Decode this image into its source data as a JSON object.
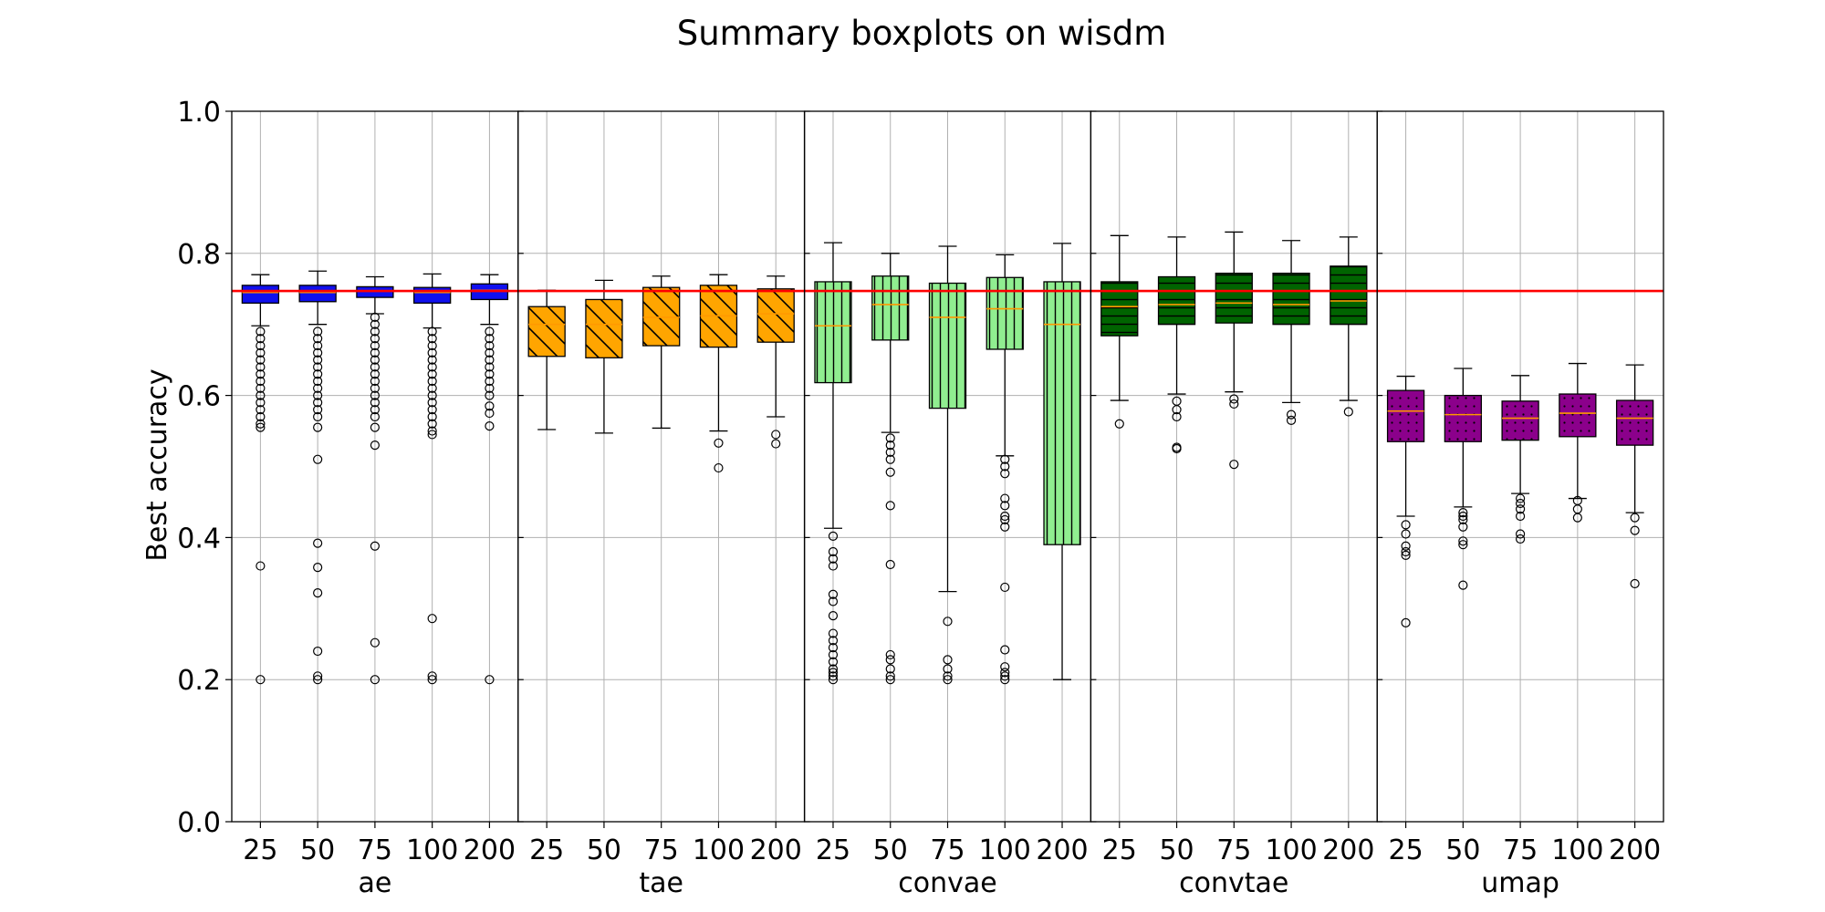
{
  "chart_data": {
    "type": "boxplot",
    "title": "Summary boxplots on wisdm",
    "ylabel": "Best accuracy",
    "ylim": [
      0.0,
      1.0
    ],
    "yticks": [
      0.0,
      0.2,
      0.4,
      0.6,
      0.8,
      1.0
    ],
    "ytick_labels": [
      "0.0",
      "0.2",
      "0.4",
      "0.6",
      "0.8",
      "1.0"
    ],
    "grid": true,
    "reference_line": {
      "value": 0.747,
      "color": "#ff0000"
    },
    "median_color": "#ff9900",
    "groups": [
      {
        "name": "ae",
        "color": "#1010ee",
        "hatch": "none",
        "boxes": [
          {
            "x": "25",
            "whisker_low": 0.698,
            "q1": 0.73,
            "median": 0.745,
            "q3": 0.755,
            "whisker_high": 0.77,
            "outliers": [
              0.555,
              0.56,
              0.57,
              0.58,
              0.59,
              0.6,
              0.61,
              0.62,
              0.63,
              0.64,
              0.65,
              0.66,
              0.67,
              0.68,
              0.69,
              0.36,
              0.2
            ]
          },
          {
            "x": "50",
            "whisker_low": 0.7,
            "q1": 0.732,
            "median": 0.745,
            "q3": 0.755,
            "whisker_high": 0.775,
            "outliers": [
              0.555,
              0.57,
              0.58,
              0.59,
              0.6,
              0.61,
              0.62,
              0.63,
              0.64,
              0.65,
              0.66,
              0.67,
              0.68,
              0.69,
              0.51,
              0.392,
              0.358,
              0.322,
              0.24,
              0.205,
              0.2
            ]
          },
          {
            "x": "75",
            "whisker_low": 0.715,
            "q1": 0.738,
            "median": 0.747,
            "q3": 0.753,
            "whisker_high": 0.767,
            "outliers": [
              0.53,
              0.555,
              0.57,
              0.58,
              0.59,
              0.6,
              0.61,
              0.62,
              0.63,
              0.64,
              0.65,
              0.66,
              0.67,
              0.68,
              0.69,
              0.7,
              0.71,
              0.388,
              0.252,
              0.2
            ]
          },
          {
            "x": "100",
            "whisker_low": 0.695,
            "q1": 0.73,
            "median": 0.745,
            "q3": 0.752,
            "whisker_high": 0.771,
            "outliers": [
              0.545,
              0.55,
              0.56,
              0.57,
              0.58,
              0.59,
              0.6,
              0.61,
              0.62,
              0.63,
              0.64,
              0.65,
              0.66,
              0.67,
              0.68,
              0.69,
              0.286,
              0.205,
              0.2
            ]
          },
          {
            "x": "200",
            "whisker_low": 0.7,
            "q1": 0.735,
            "median": 0.748,
            "q3": 0.757,
            "whisker_high": 0.77,
            "outliers": [
              0.557,
              0.575,
              0.585,
              0.6,
              0.61,
              0.62,
              0.63,
              0.64,
              0.65,
              0.66,
              0.67,
              0.68,
              0.69,
              0.2
            ]
          }
        ]
      },
      {
        "name": "tae",
        "color": "#ffa500",
        "hatch": "diag",
        "boxes": [
          {
            "x": "25",
            "whisker_low": 0.552,
            "q1": 0.655,
            "median": 0.7,
            "q3": 0.725,
            "whisker_high": 0.748,
            "outliers": []
          },
          {
            "x": "50",
            "whisker_low": 0.547,
            "q1": 0.653,
            "median": 0.7,
            "q3": 0.735,
            "whisker_high": 0.762,
            "outliers": []
          },
          {
            "x": "75",
            "whisker_low": 0.554,
            "q1": 0.67,
            "median": 0.71,
            "q3": 0.752,
            "whisker_high": 0.768,
            "outliers": []
          },
          {
            "x": "100",
            "whisker_low": 0.55,
            "q1": 0.668,
            "median": 0.712,
            "q3": 0.755,
            "whisker_high": 0.77,
            "outliers": [
              0.533,
              0.498
            ]
          },
          {
            "x": "200",
            "whisker_low": 0.57,
            "q1": 0.675,
            "median": 0.715,
            "q3": 0.75,
            "whisker_high": 0.768,
            "outliers": [
              0.545,
              0.532
            ]
          }
        ]
      },
      {
        "name": "convae",
        "color": "#90ee90",
        "hatch": "vert",
        "boxes": [
          {
            "x": "25",
            "whisker_low": 0.413,
            "q1": 0.618,
            "median": 0.698,
            "q3": 0.76,
            "whisker_high": 0.815,
            "outliers": [
              0.402,
              0.38,
              0.37,
              0.36,
              0.32,
              0.31,
              0.29,
              0.265,
              0.255,
              0.245,
              0.235,
              0.225,
              0.215,
              0.21,
              0.205,
              0.2
            ]
          },
          {
            "x": "50",
            "whisker_low": 0.548,
            "q1": 0.678,
            "median": 0.728,
            "q3": 0.768,
            "whisker_high": 0.8,
            "outliers": [
              0.54,
              0.53,
              0.52,
              0.51,
              0.492,
              0.445,
              0.362,
              0.235,
              0.228,
              0.215,
              0.205,
              0.2
            ]
          },
          {
            "x": "75",
            "whisker_low": 0.324,
            "q1": 0.582,
            "median": 0.71,
            "q3": 0.758,
            "whisker_high": 0.81,
            "outliers": [
              0.282,
              0.228,
              0.215,
              0.205,
              0.2
            ]
          },
          {
            "x": "100",
            "whisker_low": 0.515,
            "q1": 0.665,
            "median": 0.722,
            "q3": 0.766,
            "whisker_high": 0.798,
            "outliers": [
              0.51,
              0.5,
              0.49,
              0.455,
              0.445,
              0.43,
              0.425,
              0.415,
              0.33,
              0.242,
              0.218,
              0.21,
              0.205,
              0.2
            ]
          },
          {
            "x": "200",
            "whisker_low": 0.2,
            "q1": 0.39,
            "median": 0.7,
            "q3": 0.76,
            "whisker_high": 0.814,
            "outliers": []
          }
        ]
      },
      {
        "name": "convtae",
        "color": "#006400",
        "hatch": "horiz",
        "boxes": [
          {
            "x": "25",
            "whisker_low": 0.593,
            "q1": 0.684,
            "median": 0.725,
            "q3": 0.76,
            "whisker_high": 0.825,
            "outliers": [
              0.56
            ]
          },
          {
            "x": "50",
            "whisker_low": 0.602,
            "q1": 0.7,
            "median": 0.728,
            "q3": 0.767,
            "whisker_high": 0.823,
            "outliers": [
              0.592,
              0.58,
              0.57,
              0.527,
              0.525
            ]
          },
          {
            "x": "75",
            "whisker_low": 0.605,
            "q1": 0.702,
            "median": 0.73,
            "q3": 0.772,
            "whisker_high": 0.83,
            "outliers": [
              0.595,
              0.588,
              0.503
            ]
          },
          {
            "x": "100",
            "whisker_low": 0.59,
            "q1": 0.7,
            "median": 0.728,
            "q3": 0.772,
            "whisker_high": 0.818,
            "outliers": [
              0.573,
              0.565
            ]
          },
          {
            "x": "200",
            "whisker_low": 0.593,
            "q1": 0.7,
            "median": 0.733,
            "q3": 0.782,
            "whisker_high": 0.823,
            "outliers": [
              0.577
            ]
          }
        ]
      },
      {
        "name": "umap",
        "color": "#8b008b",
        "hatch": "dots",
        "boxes": [
          {
            "x": "25",
            "whisker_low": 0.43,
            "q1": 0.535,
            "median": 0.578,
            "q3": 0.607,
            "whisker_high": 0.627,
            "outliers": [
              0.418,
              0.405,
              0.388,
              0.38,
              0.375,
              0.28
            ]
          },
          {
            "x": "50",
            "whisker_low": 0.443,
            "q1": 0.535,
            "median": 0.573,
            "q3": 0.6,
            "whisker_high": 0.638,
            "outliers": [
              0.435,
              0.43,
              0.425,
              0.415,
              0.395,
              0.39,
              0.333
            ]
          },
          {
            "x": "75",
            "whisker_low": 0.462,
            "q1": 0.537,
            "median": 0.568,
            "q3": 0.592,
            "whisker_high": 0.628,
            "outliers": [
              0.455,
              0.448,
              0.44,
              0.43,
              0.405,
              0.398
            ]
          },
          {
            "x": "100",
            "whisker_low": 0.455,
            "q1": 0.542,
            "median": 0.575,
            "q3": 0.602,
            "whisker_high": 0.645,
            "outliers": [
              0.452,
              0.44,
              0.428
            ]
          },
          {
            "x": "200",
            "whisker_low": 0.435,
            "q1": 0.53,
            "median": 0.568,
            "q3": 0.593,
            "whisker_high": 0.643,
            "outliers": [
              0.428,
              0.41,
              0.335
            ]
          }
        ]
      }
    ]
  }
}
